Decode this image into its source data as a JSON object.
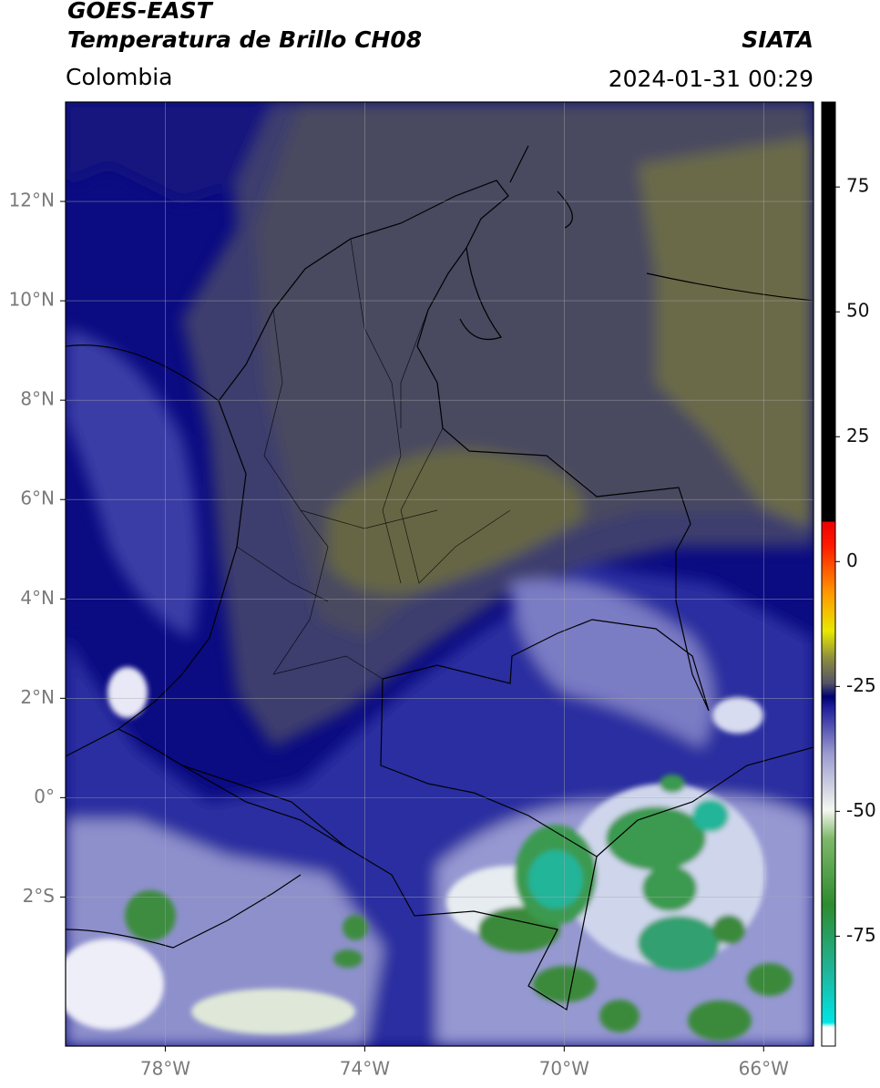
{
  "header": {
    "title": "GOES-EAST",
    "subtitle": "Temperatura de Brillo CH08",
    "source": "SIATA",
    "region": "Colombia",
    "datetime": "2024-01-31 00:29"
  },
  "map": {
    "xlim": [
      -80,
      -65
    ],
    "ylim": [
      -5,
      14
    ],
    "xticks": [
      {
        "value": -78,
        "label": "78°W"
      },
      {
        "value": -74,
        "label": "74°W"
      },
      {
        "value": -70,
        "label": "70°W"
      },
      {
        "value": -66,
        "label": "66°W"
      }
    ],
    "yticks": [
      {
        "value": -2,
        "label": "2°S"
      },
      {
        "value": 0,
        "label": "0°"
      },
      {
        "value": 2,
        "label": "2°N"
      },
      {
        "value": 4,
        "label": "4°N"
      },
      {
        "value": 6,
        "label": "6°N"
      },
      {
        "value": 8,
        "label": "8°N"
      },
      {
        "value": 10,
        "label": "10°N"
      },
      {
        "value": 12,
        "label": "12°N"
      }
    ],
    "grid": true
  },
  "colorbar": {
    "lim": [
      -97,
      92
    ],
    "ticks": [
      -75,
      -50,
      -25,
      0,
      25,
      50,
      75
    ]
  }
}
